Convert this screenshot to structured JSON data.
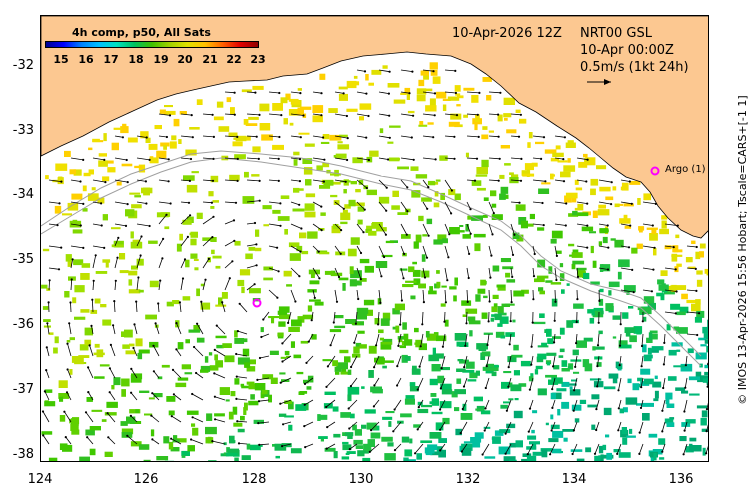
{
  "colorbar": {
    "title": "4h comp, p50, All Sats",
    "ticks": [
      "15",
      "16",
      "17",
      "18",
      "19",
      "20",
      "21",
      "22",
      "23"
    ]
  },
  "header": {
    "date": "10-Apr-2026 12Z",
    "product": "NRT00 GSL",
    "current_time": "10-Apr 00:00Z",
    "scale": "0.5m/s (1kt 24h)"
  },
  "axes": {
    "x_ticks": [
      "124",
      "126",
      "128",
      "130",
      "132",
      "134",
      "136"
    ],
    "y_ticks": [
      "-32",
      "-33",
      "-34",
      "-35",
      "-36",
      "-37",
      "-38"
    ]
  },
  "annotations": {
    "argo_label": "Argo (1)"
  },
  "credit": "© IMOS 13-Apr-2026 15:56 Hobart; Tscale=CARS+[-1 1]",
  "colors": {
    "land": "#fcc891",
    "marker": "#ff00ff",
    "contour": "#a0a0a0"
  }
}
